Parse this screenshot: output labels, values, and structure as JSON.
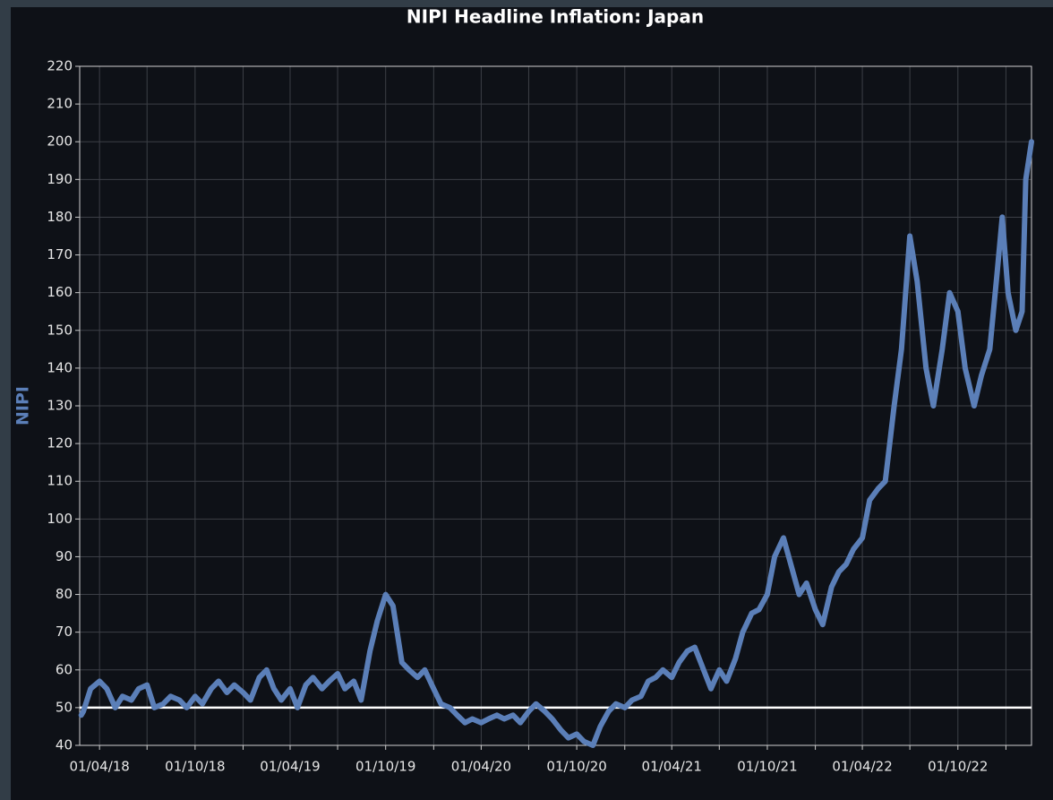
{
  "chart_data": {
    "type": "line",
    "title": "NIPI Headline Inflation: Japan",
    "ylabel": "NIPI",
    "color": "#5b7fb8",
    "hline": 50,
    "hline_color": "#ffffff",
    "grid": true,
    "xlim": [
      "2018-02-22",
      "2023-02-19"
    ],
    "xticks": [
      {
        "value": "2018-04-01",
        "label": "01/04/18"
      },
      {
        "value": "2018-10-01",
        "label": "01/10/18"
      },
      {
        "value": "2019-04-01",
        "label": "01/04/19"
      },
      {
        "value": "2019-10-01",
        "label": "01/10/19"
      },
      {
        "value": "2020-04-01",
        "label": "01/04/20"
      },
      {
        "value": "2020-10-01",
        "label": "01/10/20"
      },
      {
        "value": "2021-04-01",
        "label": "01/04/21"
      },
      {
        "value": "2021-10-01",
        "label": "01/10/21"
      },
      {
        "value": "2022-04-01",
        "label": "01/04/22"
      },
      {
        "value": "2022-10-01",
        "label": "01/10/22"
      }
    ],
    "xminor_ticks": [
      "2018-07-01",
      "2019-01-01",
      "2019-07-01",
      "2020-01-01",
      "2020-07-01",
      "2021-01-01",
      "2021-07-01",
      "2022-01-01",
      "2022-07-01",
      "2023-01-01"
    ],
    "ylim": [
      40,
      220
    ],
    "yticks": [
      40,
      50,
      60,
      70,
      80,
      90,
      100,
      110,
      120,
      130,
      140,
      150,
      160,
      170,
      180,
      190,
      200,
      210,
      220
    ],
    "x": [
      "2018-02-25",
      "2018-03-01",
      "2018-03-15",
      "2018-04-01",
      "2018-04-15",
      "2018-05-01",
      "2018-05-15",
      "2018-06-01",
      "2018-06-15",
      "2018-07-01",
      "2018-07-15",
      "2018-08-01",
      "2018-08-15",
      "2018-09-01",
      "2018-09-15",
      "2018-10-01",
      "2018-10-15",
      "2018-11-01",
      "2018-11-15",
      "2018-12-01",
      "2018-12-15",
      "2019-01-01",
      "2019-01-15",
      "2019-02-01",
      "2019-02-15",
      "2019-03-01",
      "2019-03-15",
      "2019-04-01",
      "2019-04-15",
      "2019-05-01",
      "2019-05-15",
      "2019-06-01",
      "2019-06-15",
      "2019-07-01",
      "2019-07-15",
      "2019-08-01",
      "2019-08-15",
      "2019-09-01",
      "2019-09-15",
      "2019-10-01",
      "2019-10-15",
      "2019-11-01",
      "2019-11-15",
      "2019-12-01",
      "2019-12-15",
      "2020-01-01",
      "2020-01-15",
      "2020-02-01",
      "2020-02-15",
      "2020-03-01",
      "2020-03-15",
      "2020-04-01",
      "2020-04-15",
      "2020-05-01",
      "2020-05-15",
      "2020-06-01",
      "2020-06-15",
      "2020-07-01",
      "2020-07-15",
      "2020-08-01",
      "2020-08-15",
      "2020-09-01",
      "2020-09-15",
      "2020-10-01",
      "2020-10-15",
      "2020-11-01",
      "2020-11-15",
      "2020-12-01",
      "2020-12-15",
      "2021-01-01",
      "2021-01-15",
      "2021-02-01",
      "2021-02-15",
      "2021-03-01",
      "2021-03-15",
      "2021-04-01",
      "2021-04-15",
      "2021-05-01",
      "2021-05-15",
      "2021-06-01",
      "2021-06-15",
      "2021-07-01",
      "2021-07-15",
      "2021-08-01",
      "2021-08-15",
      "2021-09-01",
      "2021-09-15",
      "2021-10-01",
      "2021-10-15",
      "2021-11-01",
      "2021-11-15",
      "2021-12-01",
      "2021-12-15",
      "2022-01-01",
      "2022-01-15",
      "2022-02-01",
      "2022-02-15",
      "2022-03-01",
      "2022-03-15",
      "2022-04-01",
      "2022-04-15",
      "2022-05-01",
      "2022-05-15",
      "2022-06-01",
      "2022-06-15",
      "2022-07-01",
      "2022-07-15",
      "2022-08-01",
      "2022-08-15",
      "2022-09-01",
      "2022-09-15",
      "2022-10-01",
      "2022-10-15",
      "2022-11-01",
      "2022-11-15",
      "2022-12-01",
      "2022-12-15",
      "2022-12-25",
      "2023-01-05",
      "2023-01-20",
      "2023-02-01",
      "2023-02-08",
      "2023-02-19"
    ],
    "values": [
      48,
      49,
      55,
      57,
      55,
      50,
      53,
      52,
      55,
      56,
      50,
      51,
      53,
      52,
      50,
      53,
      51,
      55,
      57,
      54,
      56,
      54,
      52,
      58,
      60,
      55,
      52,
      55,
      50,
      56,
      58,
      55,
      57,
      59,
      55,
      57,
      52,
      65,
      73,
      80,
      77,
      62,
      60,
      58,
      60,
      55,
      51,
      50,
      48,
      46,
      47,
      46,
      47,
      48,
      47,
      48,
      46,
      49,
      51,
      49,
      47,
      44,
      42,
      43,
      41,
      40,
      45,
      49,
      51,
      50,
      52,
      53,
      57,
      58,
      60,
      58,
      62,
      65,
      66,
      60,
      55,
      60,
      57,
      63,
      70,
      75,
      76,
      80,
      90,
      95,
      88,
      80,
      83,
      76,
      72,
      82,
      86,
      88,
      92,
      95,
      105,
      108,
      110,
      130,
      145,
      175,
      163,
      140,
      130,
      145,
      160,
      155,
      140,
      130,
      138,
      145,
      165,
      180,
      160,
      150,
      155,
      190,
      200
    ]
  }
}
